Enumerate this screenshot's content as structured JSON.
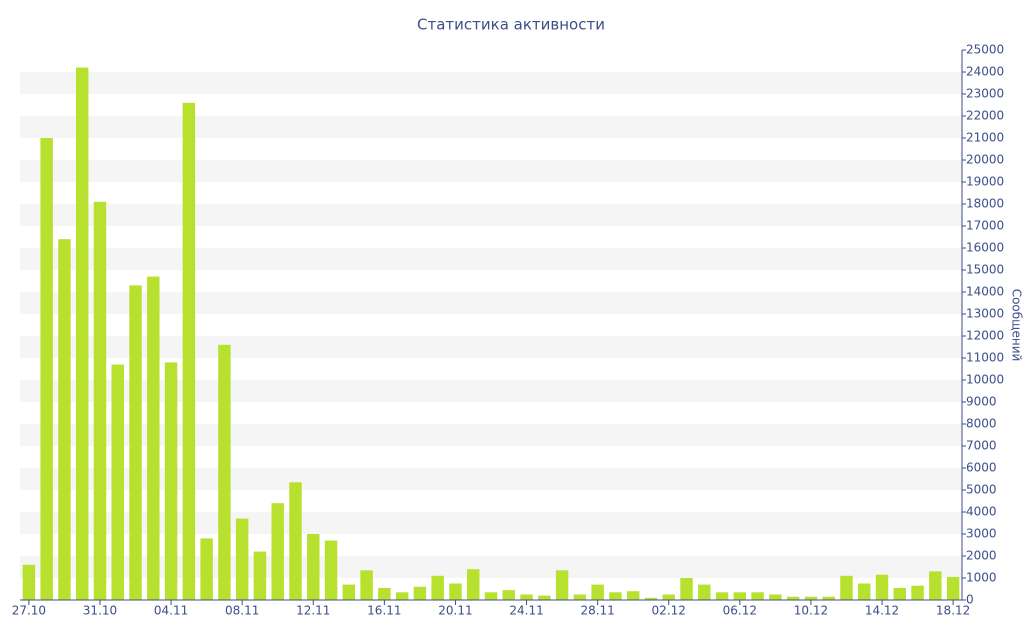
{
  "chart_data": {
    "type": "bar",
    "title": "Статистика активности",
    "y_label": "Сообщений",
    "categories": [
      "27.10",
      null,
      null,
      null,
      "31.10",
      null,
      null,
      null,
      "04.11",
      null,
      null,
      null,
      "08.11",
      null,
      null,
      null,
      "12.11",
      null,
      null,
      null,
      "16.11",
      null,
      null,
      null,
      "20.11",
      null,
      null,
      null,
      "24.11",
      null,
      null,
      null,
      "28.11",
      null,
      null,
      null,
      "02.12",
      null,
      null,
      null,
      "06.12",
      null,
      null,
      null,
      "10.12",
      null,
      null,
      null,
      "14.12",
      null,
      null,
      null,
      "18.12"
    ],
    "values": [
      1600,
      21000,
      16400,
      24200,
      18100,
      10700,
      14300,
      14700,
      10800,
      22600,
      2800,
      11600,
      3700,
      2200,
      4400,
      5350,
      3000,
      2700,
      700,
      1350,
      550,
      350,
      600,
      1100,
      750,
      1400,
      350,
      450,
      250,
      200,
      1350,
      250,
      700,
      350,
      400,
      100,
      250,
      1000,
      700,
      350,
      350,
      350,
      250,
      150,
      150,
      150,
      1100,
      750,
      1150,
      550,
      650,
      1300,
      1050
    ],
    "color": "#b8e02e",
    "ylim": [
      0,
      25000
    ],
    "yticks": [
      0,
      1000,
      2000,
      3000,
      4000,
      5000,
      6000,
      7000,
      8000,
      9000,
      10000,
      11000,
      12000,
      13000,
      14000,
      15000,
      16000,
      17000,
      18000,
      19000,
      20000,
      21000,
      22000,
      23000,
      24000,
      25000
    ],
    "grid": true
  }
}
